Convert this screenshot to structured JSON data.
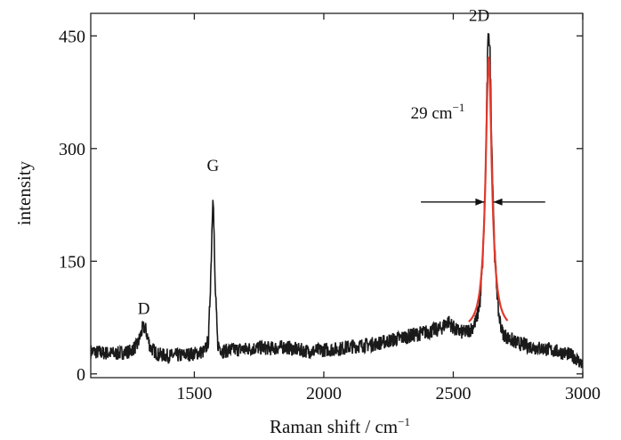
{
  "chart_data": {
    "type": "line",
    "title": "",
    "xlabel": "Raman shift / cm",
    "xlabel_superscript": "−1",
    "ylabel": "intensity",
    "xlim": [
      1100,
      3000
    ],
    "ylim": [
      -5,
      480
    ],
    "x_ticks": [
      1500,
      2000,
      2500,
      3000
    ],
    "y_ticks": [
      0,
      150,
      300,
      450
    ],
    "grid": false,
    "legend": "none",
    "series": [
      {
        "color": "#1a1a1a",
        "style": "noisy-spectrum",
        "x": [
          1100,
          1150,
          1200,
          1250,
          1280,
          1300,
          1310,
          1330,
          1360,
          1400,
          1450,
          1500,
          1540,
          1555,
          1565,
          1572,
          1580,
          1590,
          1610,
          1650,
          1700,
          1750,
          1800,
          1850,
          1900,
          1950,
          2000,
          2050,
          2100,
          2150,
          2200,
          2250,
          2300,
          2350,
          2400,
          2450,
          2480,
          2510,
          2540,
          2570,
          2590,
          2605,
          2615,
          2625,
          2632,
          2637,
          2642,
          2650,
          2660,
          2675,
          2690,
          2710,
          2740,
          2780,
          2820,
          2860,
          2900,
          2940,
          2970,
          3000
        ],
        "y": [
          30,
          28,
          27,
          30,
          38,
          60,
          62,
          35,
          26,
          24,
          25,
          27,
          30,
          45,
          150,
          250,
          120,
          40,
          30,
          32,
          33,
          35,
          34,
          36,
          32,
          30,
          32,
          33,
          36,
          38,
          40,
          44,
          48,
          52,
          56,
          60,
          70,
          58,
          55,
          60,
          72,
          100,
          160,
          270,
          410,
          465,
          420,
          290,
          160,
          80,
          55,
          48,
          42,
          38,
          35,
          33,
          30,
          27,
          22,
          12
        ]
      },
      {
        "color": "#e0392b",
        "style": "lorentzian-fit",
        "center": 2637,
        "fwhm": 29,
        "amplitude": 365,
        "baseline": 57,
        "x_range": [
          2560,
          2710
        ]
      }
    ],
    "annotations": [
      {
        "text": "D",
        "x": 1305,
        "y": 80
      },
      {
        "text": "G",
        "x": 1572,
        "y": 270
      },
      {
        "text": "2D",
        "x": 2600,
        "y": 470
      },
      {
        "text": "29 cm",
        "superscript": "−1",
        "x": 2440,
        "y": 340
      }
    ],
    "fwhm_arrows": {
      "y": 300,
      "left_from": 2375,
      "left_to": 2620,
      "right_from": 2855,
      "right_to": 2655
    }
  }
}
